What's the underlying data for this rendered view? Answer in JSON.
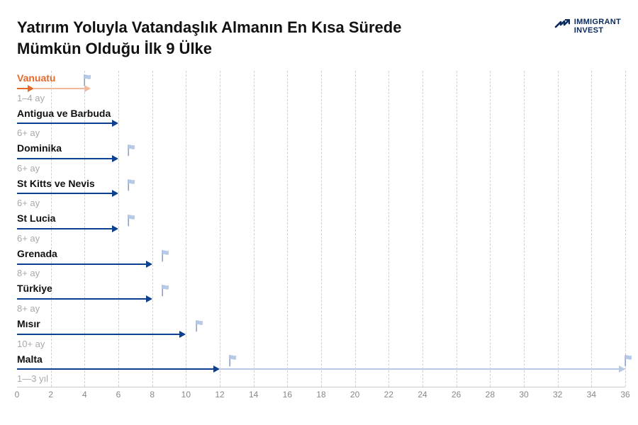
{
  "title": "Yatırım Yoluyla Vatandaşlık Almanın En Kısa Sürede Mümkün Olduğu İlk 9 Ülke",
  "logo": {
    "line1": "IMMIGRANT",
    "line2": "INVEST"
  },
  "chart": {
    "type": "bar",
    "x_min": 0,
    "x_max": 36,
    "x_tick_step": 2,
    "background_color": "#ffffff",
    "grid_color": "#d0d0d0",
    "axis_color": "#c9c9c9",
    "axis_label_color": "#888888",
    "axis_label_fontsize": 12,
    "label_fontsize": 14,
    "sub_fontsize": 13,
    "sub_color": "#a9a9a9",
    "arrow_stroke_width": 2,
    "flag_color": "#b8c9e8",
    "flag_pole_color": "#8aa2cc",
    "rows": [
      {
        "label": "Vanuatu",
        "sub": "1‒4 ay",
        "value": 1,
        "flags": [
          4
        ],
        "color": "#e36a2c",
        "highlight_color": "#f2b89b",
        "label_text_color": "#e36a2c"
      },
      {
        "label": "Antigua ve Barbuda",
        "sub": "6+ ay",
        "value": 6,
        "flags": [],
        "color": "#0b3f8f"
      },
      {
        "label": "Dominika",
        "sub": "6+ ay",
        "value": 6,
        "flags": [
          6.6
        ],
        "color": "#0b3f8f"
      },
      {
        "label": "St Kitts ve Nevis",
        "sub": "6+ ay",
        "value": 6,
        "flags": [
          6.6
        ],
        "color": "#0b3f8f"
      },
      {
        "label": "St Lucia",
        "sub": "6+ ay",
        "value": 6,
        "flags": [
          6.6
        ],
        "color": "#0b3f8f"
      },
      {
        "label": "Grenada",
        "sub": "8+ ay",
        "value": 8,
        "flags": [
          8.6
        ],
        "color": "#0b3f8f"
      },
      {
        "label": "Türkiye",
        "sub": "8+ ay",
        "value": 8,
        "flags": [
          8.6
        ],
        "color": "#0b3f8f"
      },
      {
        "label": "Mısır",
        "sub": "10+ ay",
        "value": 10,
        "flags": [
          10.6
        ],
        "color": "#0b3f8f"
      },
      {
        "label": "Malta",
        "sub": "1—3 yıl",
        "value": 12,
        "flags": [
          12.6,
          36
        ],
        "color": "#0b3f8f",
        "ghost_from": 12,
        "ghost_to": 36,
        "ghost_color": "#b8c9e8"
      }
    ]
  }
}
